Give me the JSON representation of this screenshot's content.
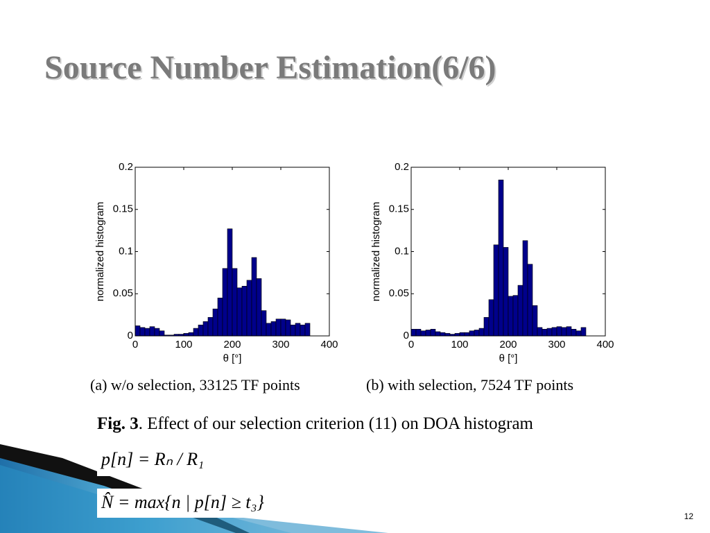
{
  "title": "Source Number Estimation(6/6)",
  "chart_data": [
    {
      "type": "histogram",
      "xlabel": "θ [°]",
      "ylabel": "normalized histogram",
      "caption": "(a)  w/o selection, 33125 TF points",
      "color": "#00008b",
      "bins": [
        0,
        10,
        20,
        30,
        40,
        50,
        60,
        70,
        80,
        90,
        100,
        110,
        120,
        130,
        140,
        150,
        160,
        170,
        180,
        190,
        200,
        210,
        220,
        230,
        240,
        250,
        260,
        270,
        280,
        290,
        300,
        310,
        320,
        330,
        340,
        350,
        360
      ],
      "values": [
        0.012,
        0.01,
        0.009,
        0.011,
        0.009,
        0.006,
        0.001,
        0.001,
        0.002,
        0.002,
        0.003,
        0.004,
        0.009,
        0.013,
        0.017,
        0.022,
        0.032,
        0.045,
        0.08,
        0.127,
        0.08,
        0.057,
        0.059,
        0.066,
        0.093,
        0.068,
        0.03,
        0.015,
        0.017,
        0.02,
        0.02,
        0.019,
        0.013,
        0.015,
        0.013,
        0.015
      ],
      "xlim": [
        0,
        400
      ],
      "ylim": [
        0,
        0.2
      ],
      "xticks": [
        0,
        100,
        200,
        300,
        400
      ],
      "yticks": [
        0,
        0.05,
        0.1,
        0.15,
        0.2
      ]
    },
    {
      "type": "histogram",
      "xlabel": "θ [°]",
      "ylabel": "normalized histogram",
      "caption": "(b)  with selection, 7524 TF points",
      "color": "#00008b",
      "bins": [
        0,
        10,
        20,
        30,
        40,
        50,
        60,
        70,
        80,
        90,
        100,
        110,
        120,
        130,
        140,
        150,
        160,
        170,
        180,
        190,
        200,
        210,
        220,
        230,
        240,
        250,
        260,
        270,
        280,
        290,
        300,
        310,
        320,
        330,
        340,
        350,
        360
      ],
      "values": [
        0.008,
        0.008,
        0.006,
        0.007,
        0.008,
        0.005,
        0.004,
        0.003,
        0.002,
        0.003,
        0.004,
        0.004,
        0.006,
        0.007,
        0.009,
        0.022,
        0.043,
        0.108,
        0.185,
        0.105,
        0.047,
        0.048,
        0.06,
        0.113,
        0.085,
        0.036,
        0.01,
        0.008,
        0.009,
        0.01,
        0.011,
        0.01,
        0.011,
        0.008,
        0.006,
        0.01
      ],
      "xlim": [
        0,
        400
      ],
      "ylim": [
        0,
        0.2
      ],
      "xticks": [
        0,
        100,
        200,
        300,
        400
      ],
      "yticks": [
        0,
        0.05,
        0.1,
        0.15,
        0.2
      ]
    }
  ],
  "figure_label": "Fig. 3",
  "figure_text": ". Effect of our selection criterion (11) on DOA histogram",
  "formula_1": "p[n] = Rₙ / R₁",
  "formula_2": "N̂ = max{n | p[n] ≥ t₃}",
  "page_number": "12"
}
